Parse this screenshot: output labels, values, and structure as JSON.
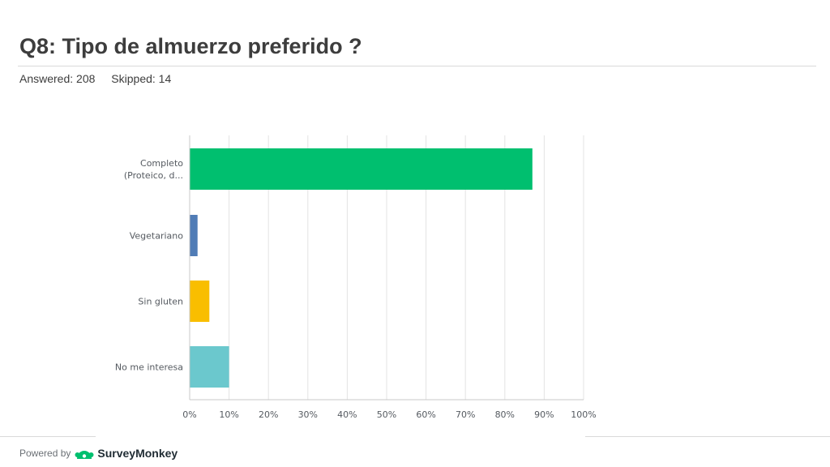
{
  "header": {
    "title": "Q8: Tipo de almuerzo preferido ?",
    "answered": "Answered: 208",
    "skipped": "Skipped: 14"
  },
  "chart_data": {
    "type": "bar",
    "orientation": "horizontal",
    "categories": [
      "Completo\n(Proteico, d...",
      "Vegetariano",
      "Sin gluten",
      "No me interesa"
    ],
    "values": [
      87,
      2,
      5,
      10
    ],
    "colors": [
      "#00bf6f",
      "#507cb6",
      "#f9be00",
      "#6bc8cd"
    ],
    "x_ticks": [
      "0%",
      "10%",
      "20%",
      "30%",
      "40%",
      "50%",
      "60%",
      "70%",
      "80%",
      "90%",
      "100%"
    ],
    "xlim": [
      0,
      100
    ],
    "grid": true,
    "title": "",
    "xlabel": "",
    "ylabel": ""
  },
  "footer": {
    "powered_by": "Powered by",
    "brand": "SurveyMonkey"
  }
}
